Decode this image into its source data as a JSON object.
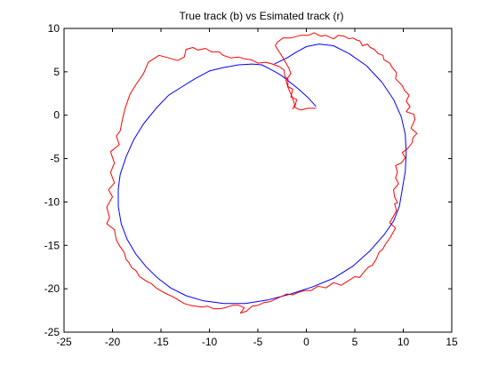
{
  "chart_data": {
    "type": "line",
    "title": "True track (b) vs Esimated track (r)",
    "xlabel": "",
    "ylabel": "",
    "xlim": [
      -25,
      15
    ],
    "ylim": [
      -25,
      10
    ],
    "grid": false,
    "xticks": [
      -25,
      -20,
      -15,
      -10,
      -5,
      0,
      5,
      10,
      15
    ],
    "yticks": [
      -25,
      -20,
      -15,
      -10,
      -5,
      0,
      5,
      10
    ],
    "series": [
      {
        "color": "#0000ff",
        "x": [
          1.0,
          0.2,
          -0.8,
          -1.8,
          -2.6,
          -3.2,
          -3.9,
          -4.6,
          -5.6,
          -7.0,
          -8.5,
          -10.0,
          -11.5,
          -12.8,
          -14.2,
          -15.5,
          -16.8,
          -17.8,
          -18.6,
          -19.2,
          -19.4,
          -19.4,
          -19.1,
          -18.5,
          -17.6,
          -16.5,
          -15.3,
          -14.0,
          -12.4,
          -10.6,
          -8.5,
          -6.3,
          -4.0,
          -1.6,
          0.6,
          2.8,
          4.8,
          6.6,
          8.0,
          9.0,
          9.6,
          9.9,
          10.2,
          10.3,
          10.2,
          9.8,
          9.0,
          7.8,
          6.2,
          4.4,
          2.8,
          1.3,
          0.0,
          -1.0,
          -2.0,
          -3.3
        ],
        "y": [
          1.0,
          2.0,
          3.0,
          3.9,
          4.6,
          5.0,
          5.4,
          5.8,
          5.9,
          5.8,
          5.5,
          5.1,
          4.2,
          3.3,
          2.3,
          0.8,
          -1.0,
          -2.8,
          -4.8,
          -6.8,
          -8.5,
          -10.5,
          -12.5,
          -14.3,
          -16.0,
          -17.5,
          -18.8,
          -19.9,
          -20.8,
          -21.4,
          -21.7,
          -21.7,
          -21.3,
          -20.6,
          -19.8,
          -18.8,
          -17.4,
          -15.6,
          -13.8,
          -12.2,
          -10.5,
          -8.5,
          -6.5,
          -4.3,
          -2.2,
          -0.2,
          1.8,
          3.8,
          5.7,
          7.1,
          8.0,
          8.2,
          7.9,
          7.3,
          6.6,
          5.9
        ]
      },
      {
        "color": "#ff0000",
        "x": [
          1.0,
          0.2,
          -0.6,
          -1.2,
          -1.0,
          -1.6,
          -1.4,
          -1.9,
          -1.9,
          -2.2,
          -2.3,
          -2.8,
          -3.5,
          -4.2,
          -5.0,
          -5.7,
          -6.4,
          -7.0,
          -7.8,
          -8.6,
          -9.0,
          -9.8,
          -10.4,
          -11.2,
          -11.7,
          -12.4,
          -12.6,
          -13.3,
          -14.2,
          -15.2,
          -16.3,
          -16.8,
          -17.6,
          -18.2,
          -18.7,
          -19.0,
          -19.2,
          -19.6,
          -19.3,
          -20.2,
          -19.8,
          -20.2,
          -19.8,
          -20.4,
          -20.0,
          -20.6,
          -20.3,
          -20.6,
          -19.8,
          -19.6,
          -19.3,
          -18.8,
          -18.6,
          -18.3,
          -18.0,
          -17.6,
          -17.2,
          -16.8,
          -16.4,
          -16.0,
          -15.5,
          -14.9,
          -14.4,
          -13.8,
          -13.2,
          -12.6,
          -12.0,
          -11.4,
          -10.8,
          -10.2,
          -9.6,
          -9.0,
          -8.4,
          -7.6,
          -7.0,
          -6.4,
          -6.8,
          -6.2,
          -5.6,
          -5.0,
          -4.4,
          -3.8,
          -3.2,
          -2.6,
          -2.0,
          -1.4,
          -0.8,
          -0.2,
          0.5,
          1.2,
          2.0,
          2.8,
          3.6,
          4.3,
          5.0,
          5.5,
          6.0,
          6.4,
          6.8,
          7.2,
          7.5,
          7.9,
          8.2,
          8.6,
          8.9,
          9.2,
          8.6,
          9.0,
          9.3,
          9.1,
          9.4,
          9.1,
          9.0,
          9.5,
          9.2,
          9.4,
          9.2,
          9.8,
          10.2,
          9.9,
          10.4,
          10.9,
          11.0,
          11.4,
          10.8,
          11.2,
          11.1,
          10.3,
          10.7,
          10.3,
          10.6,
          10.1,
          9.9,
          9.2,
          9.3,
          8.8,
          8.6,
          8.0,
          7.9,
          7.4,
          7.0,
          6.6,
          6.3,
          5.8,
          5.5,
          5.3,
          4.8,
          4.4,
          3.9,
          3.3,
          2.8,
          2.0,
          1.5,
          0.8,
          0.2,
          -0.6,
          -1.6,
          -2.4,
          -3.0,
          -3.2,
          -2.8,
          -2.4,
          -1.8,
          -1.6,
          -2.1,
          -1.9,
          -1.5,
          -1.2,
          -1.4
        ],
        "y": [
          0.8,
          0.8,
          0.6,
          0.9,
          1.8,
          2.1,
          3.0,
          3.3,
          4.2,
          4.4,
          5.2,
          5.6,
          5.9,
          6.1,
          6.0,
          6.4,
          6.5,
          6.7,
          6.6,
          6.9,
          7.3,
          7.3,
          7.7,
          7.5,
          7.8,
          7.6,
          6.7,
          6.3,
          6.6,
          6.9,
          6.1,
          4.8,
          3.5,
          2.4,
          0.8,
          -0.6,
          -1.8,
          -2.4,
          -3.4,
          -4.2,
          -5.5,
          -6.6,
          -7.8,
          -8.6,
          -9.4,
          -10.6,
          -11.8,
          -12.5,
          -13.2,
          -14.4,
          -15.0,
          -15.8,
          -16.6,
          -17.0,
          -17.6,
          -17.9,
          -18.6,
          -18.9,
          -19.2,
          -19.4,
          -19.9,
          -20.3,
          -20.6,
          -20.9,
          -21.3,
          -21.7,
          -21.9,
          -22.0,
          -22.1,
          -22.0,
          -22.3,
          -22.3,
          -22.2,
          -21.9,
          -21.9,
          -22.2,
          -22.8,
          -22.6,
          -22.0,
          -21.9,
          -21.6,
          -21.5,
          -21.2,
          -20.9,
          -20.6,
          -20.7,
          -20.4,
          -20.2,
          -20.2,
          -19.7,
          -19.9,
          -19.3,
          -19.6,
          -19.1,
          -18.6,
          -18.7,
          -18.0,
          -17.5,
          -17.3,
          -16.6,
          -15.8,
          -15.4,
          -14.8,
          -14.2,
          -13.6,
          -13.0,
          -12.4,
          -11.6,
          -11.0,
          -10.2,
          -10.1,
          -9.4,
          -8.6,
          -7.9,
          -7.2,
          -6.6,
          -5.8,
          -5.5,
          -4.9,
          -4.3,
          -3.9,
          -3.2,
          -2.6,
          -2.1,
          -1.5,
          -0.5,
          0.1,
          0.4,
          1.0,
          1.6,
          2.3,
          2.9,
          3.4,
          4.2,
          4.9,
          5.6,
          6.0,
          6.4,
          6.9,
          7.1,
          7.6,
          7.8,
          8.2,
          8.0,
          8.6,
          8.6,
          8.9,
          8.8,
          9.1,
          9.2,
          8.8,
          9.2,
          9.1,
          9.5,
          9.2,
          9.2,
          8.9,
          8.9,
          8.4,
          8.0,
          7.3,
          6.6,
          5.4,
          4.8,
          4.0,
          3.2,
          2.2,
          1.2,
          0.7
        ]
      }
    ]
  }
}
